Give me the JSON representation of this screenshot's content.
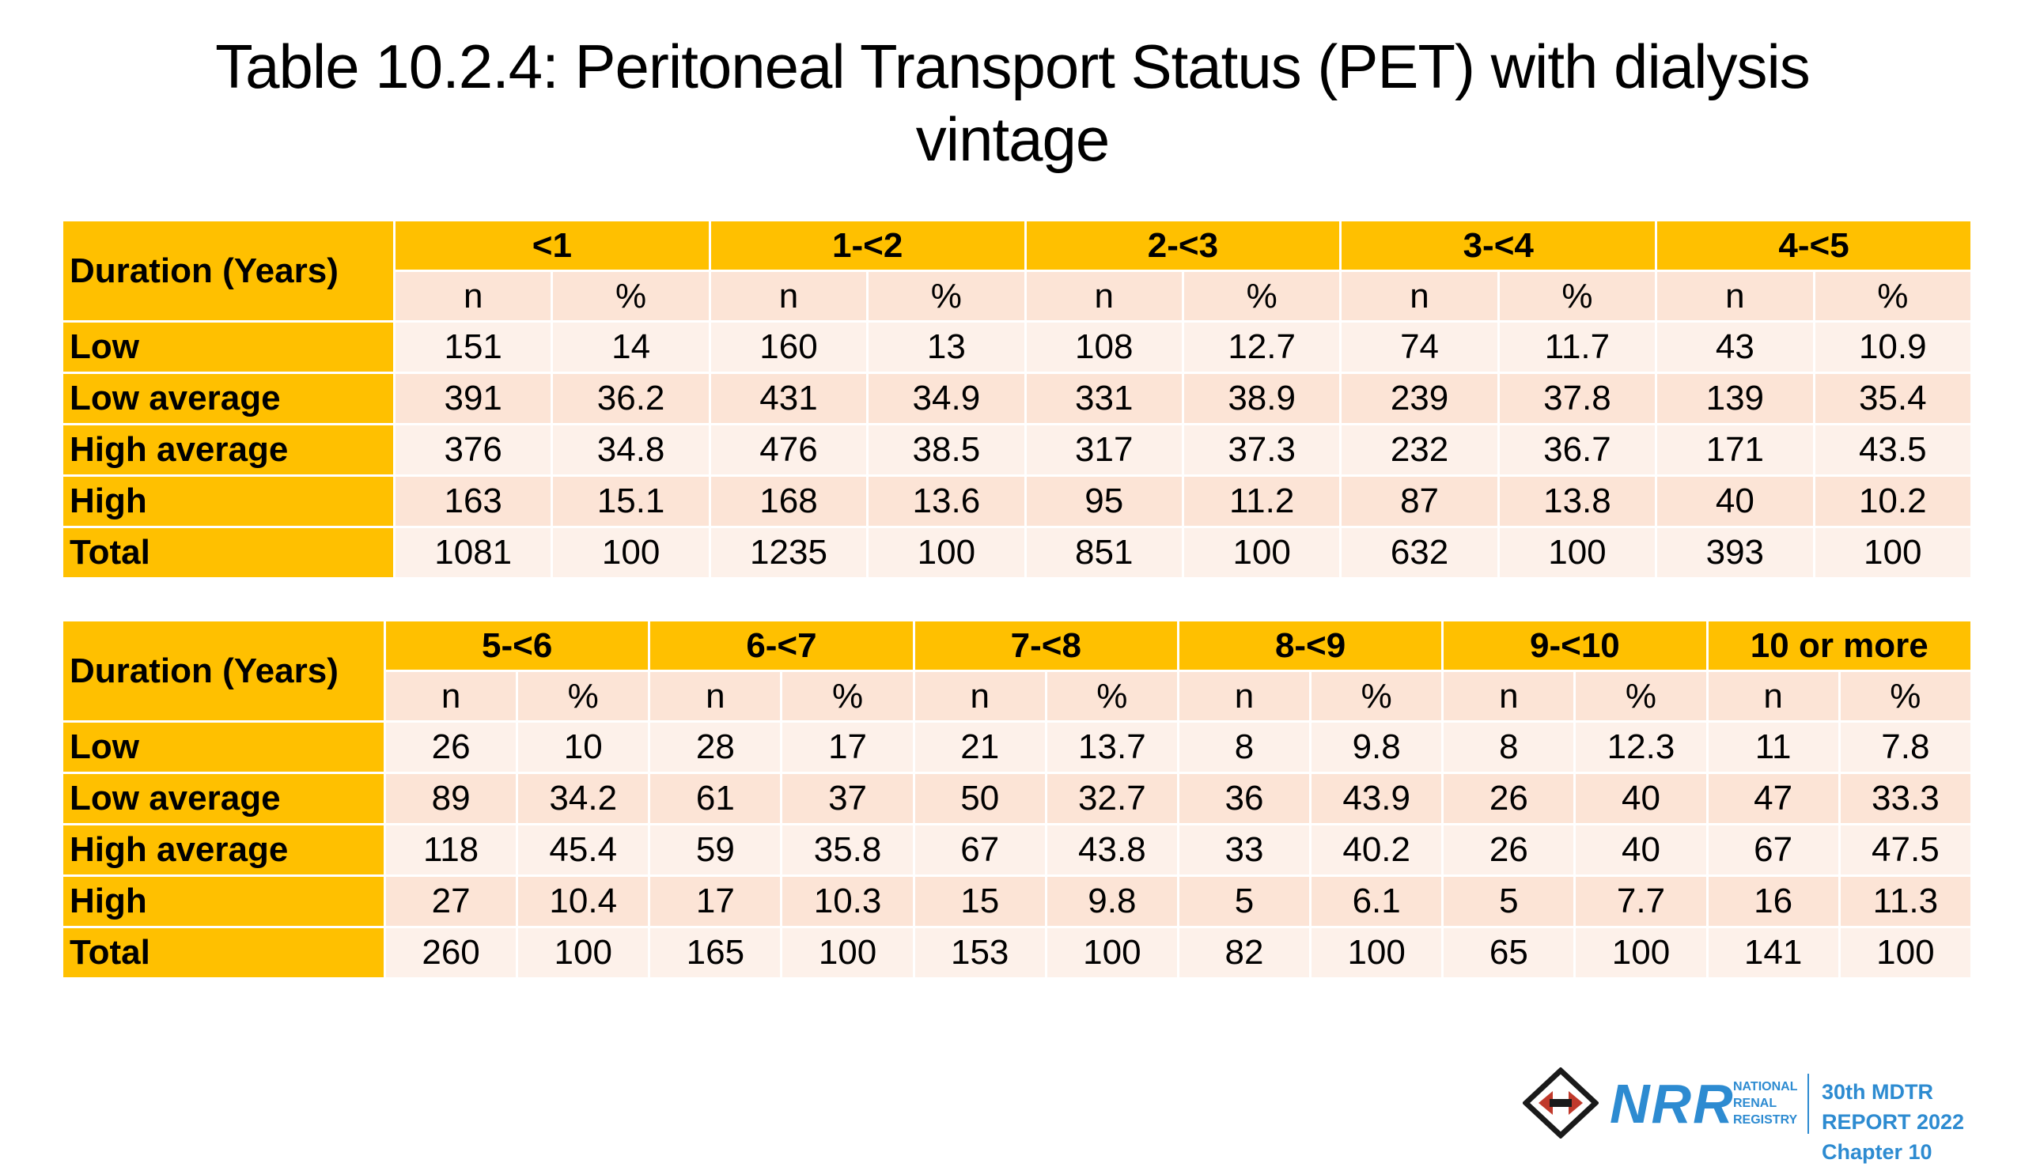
{
  "title_line1": "Table 10.2.4: Peritoneal Transport Status (PET) with dialysis",
  "title_line2": "vintage",
  "corner_label": "Duration (Years)",
  "sub_n": "n",
  "sub_pct": "%",
  "tables": [
    {
      "groups": [
        "<1",
        "1-<2",
        "2-<3",
        "3-<4",
        "4-<5"
      ],
      "rows": [
        {
          "label": "Low",
          "values": [
            "151",
            "14",
            "160",
            "13",
            "108",
            "12.7",
            "74",
            "11.7",
            "43",
            "10.9"
          ]
        },
        {
          "label": "Low average",
          "values": [
            "391",
            "36.2",
            "431",
            "34.9",
            "331",
            "38.9",
            "239",
            "37.8",
            "139",
            "35.4"
          ]
        },
        {
          "label": "High average",
          "values": [
            "376",
            "34.8",
            "476",
            "38.5",
            "317",
            "37.3",
            "232",
            "36.7",
            "171",
            "43.5"
          ]
        },
        {
          "label": "High",
          "values": [
            "163",
            "15.1",
            "168",
            "13.6",
            "95",
            "11.2",
            "87",
            "13.8",
            "40",
            "10.2"
          ]
        },
        {
          "label": "Total",
          "values": [
            "1081",
            "100",
            "1235",
            "100",
            "851",
            "100",
            "632",
            "100",
            "393",
            "100"
          ]
        }
      ]
    },
    {
      "groups": [
        "5-<6",
        "6-<7",
        "7-<8",
        "8-<9",
        "9-<10",
        "10 or more"
      ],
      "rows": [
        {
          "label": "Low",
          "values": [
            "26",
            "10",
            "28",
            "17",
            "21",
            "13.7",
            "8",
            "9.8",
            "8",
            "12.3",
            "11",
            "7.8"
          ]
        },
        {
          "label": "Low average",
          "values": [
            "89",
            "34.2",
            "61",
            "37",
            "50",
            "32.7",
            "36",
            "43.9",
            "26",
            "40",
            "47",
            "33.3"
          ]
        },
        {
          "label": "High average",
          "values": [
            "118",
            "45.4",
            "59",
            "35.8",
            "67",
            "43.8",
            "33",
            "40.2",
            "26",
            "40",
            "67",
            "47.5"
          ]
        },
        {
          "label": "High",
          "values": [
            "27",
            "10.4",
            "17",
            "10.3",
            "15",
            "9.8",
            "5",
            "6.1",
            "5",
            "7.7",
            "16",
            "11.3"
          ]
        },
        {
          "label": "Total",
          "values": [
            "260",
            "100",
            "165",
            "100",
            "153",
            "100",
            "82",
            "100",
            "65",
            "100",
            "141",
            "100"
          ]
        }
      ]
    }
  ],
  "footer": {
    "logo_letters": "NRR",
    "registry_line1": "NATIONAL",
    "registry_line2": "RENAL",
    "registry_line3": "REGISTRY",
    "report_line1": "30th MDTR REPORT 2022",
    "report_line2": "Chapter 10"
  },
  "colors": {
    "header_gold": "#FFC000",
    "sub_peach": "#FCE4D6",
    "row_light": "#FDF1EA",
    "brand_blue": "#2D8BD1",
    "logo_red": "#C0392B"
  }
}
